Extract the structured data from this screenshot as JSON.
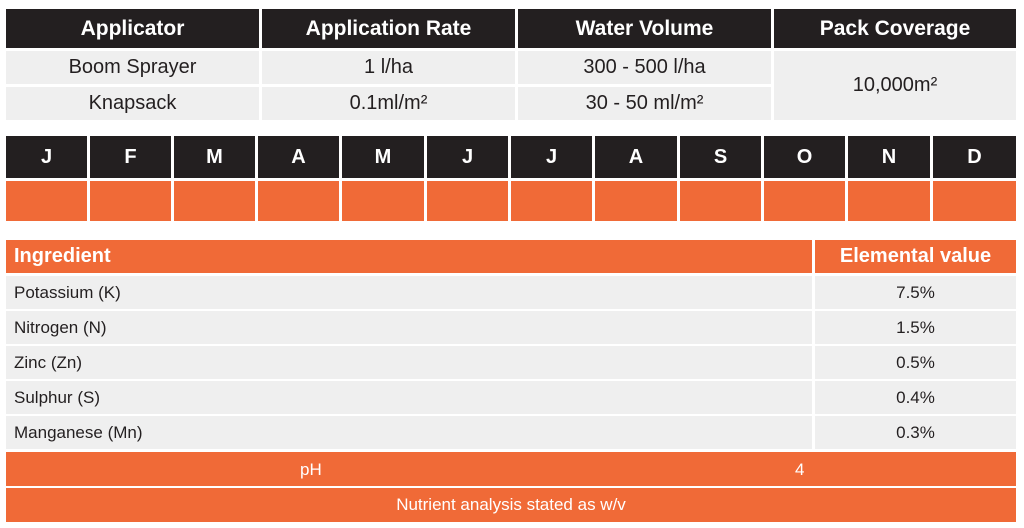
{
  "application_table": {
    "headers": [
      "Applicator",
      "Application Rate",
      "Water Volume",
      "Pack Coverage"
    ],
    "rows": [
      {
        "applicator": "Boom Sprayer",
        "rate": "1 l/ha",
        "water": "300 - 500 l/ha"
      },
      {
        "applicator": "Knapsack",
        "rate": "0.1ml/m²",
        "water": "30 - 50 ml/m²"
      }
    ],
    "pack_coverage": "10,000m²"
  },
  "calendar": {
    "months": [
      "J",
      "F",
      "M",
      "A",
      "M",
      "J",
      "J",
      "A",
      "S",
      "O",
      "N",
      "D"
    ],
    "active_color": "#f06a37",
    "active_months": [
      true,
      true,
      true,
      true,
      true,
      true,
      true,
      true,
      true,
      true,
      true,
      true
    ]
  },
  "ingredients": {
    "header_left": "Ingredient",
    "header_right": "Elemental value",
    "rows": [
      {
        "name": "Potassium (K)",
        "value": "7.5%"
      },
      {
        "name": "Nitrogen (N)",
        "value": "1.5%"
      },
      {
        "name": "Zinc (Zn)",
        "value": "0.5%"
      },
      {
        "name": "Sulphur (S)",
        "value": "0.4%"
      },
      {
        "name": "Manganese (Mn)",
        "value": "0.3%"
      }
    ],
    "ph_label": "pH",
    "ph_value": "4",
    "footnote": "Nutrient analysis stated as w/v"
  },
  "colors": {
    "dark": "#231f20",
    "accent": "#f06a37",
    "light_row": "#efefef"
  }
}
